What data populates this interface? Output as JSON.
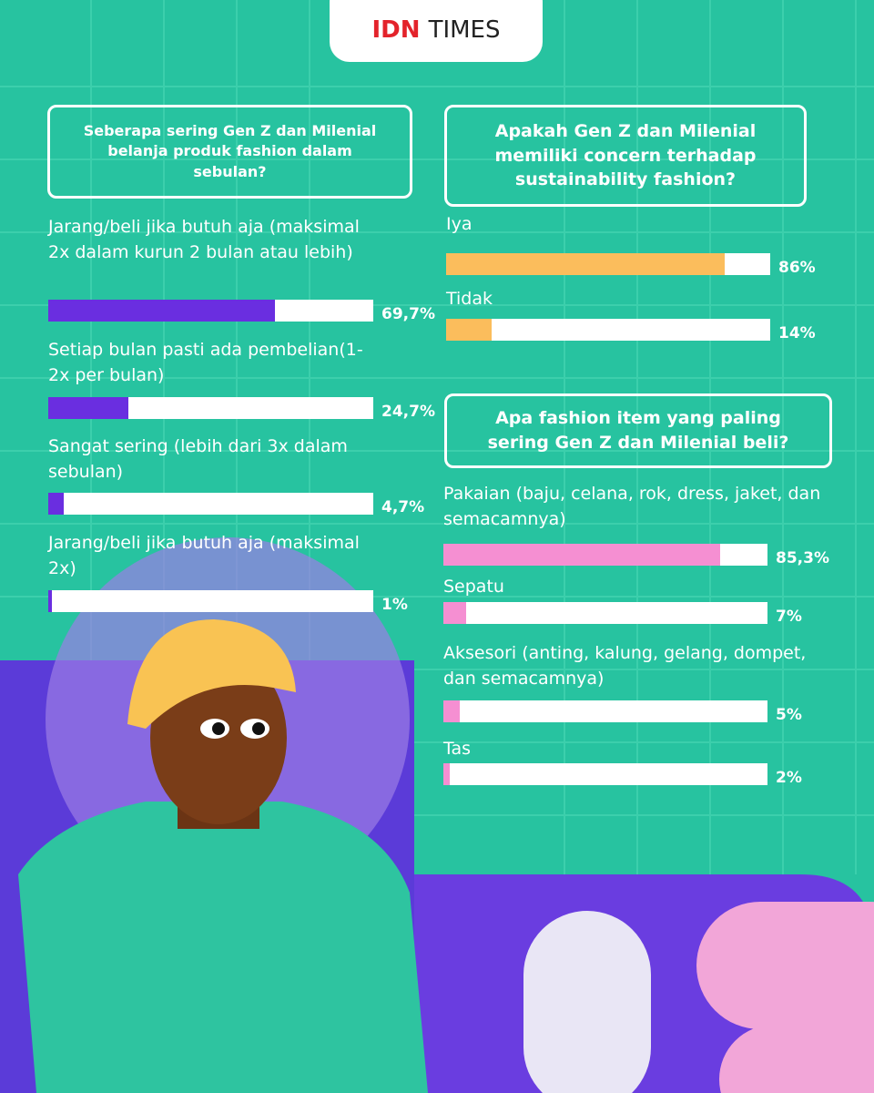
{
  "header": {
    "logo_left": "IDN",
    "logo_right": "TIMES"
  },
  "chart_data": [
    {
      "type": "bar",
      "orientation": "horizontal",
      "title": "Seberapa sering Gen Z dan Milenial belanja produk fashion dalam sebulan?",
      "categories": [
        "Jarang/beli jika butuh aja (maksimal 2x dalam kurun 2 bulan atau lebih)",
        "Setiap bulan pasti ada pembelian(1-2x per bulan)",
        "Sangat sering (lebih dari 3x dalam sebulan)",
        "Jarang/beli jika butuh aja (maksimal 2x)"
      ],
      "values": [
        69.7,
        24.7,
        4.7,
        1
      ],
      "value_labels": [
        "69,7%",
        "24,7%",
        "4,7%",
        "1%"
      ],
      "color": "#6a2ee0",
      "xlim": [
        0,
        100
      ]
    },
    {
      "type": "bar",
      "orientation": "horizontal",
      "title": "Apakah Gen Z dan Milenial memiliki concern terhadap sustainability fashion?",
      "categories": [
        "Iya",
        "Tidak"
      ],
      "values": [
        86,
        14
      ],
      "value_labels": [
        "86%",
        "14%"
      ],
      "color": "#fbbd5c",
      "xlim": [
        0,
        100
      ]
    },
    {
      "type": "bar",
      "orientation": "horizontal",
      "title": "Apa fashion item yang paling sering Gen Z dan Milenial beli?",
      "categories": [
        "Pakaian (baju, celana, rok, dress, jaket, dan semacamnya)",
        "Sepatu",
        "Aksesori (anting, kalung, gelang, dompet, dan semacamnya)",
        "Tas"
      ],
      "values": [
        85.3,
        7,
        5,
        2
      ],
      "value_labels": [
        "85,3%",
        "7%",
        "5%",
        "2%"
      ],
      "color": "#f58fd2",
      "xlim": [
        0,
        100
      ]
    }
  ]
}
